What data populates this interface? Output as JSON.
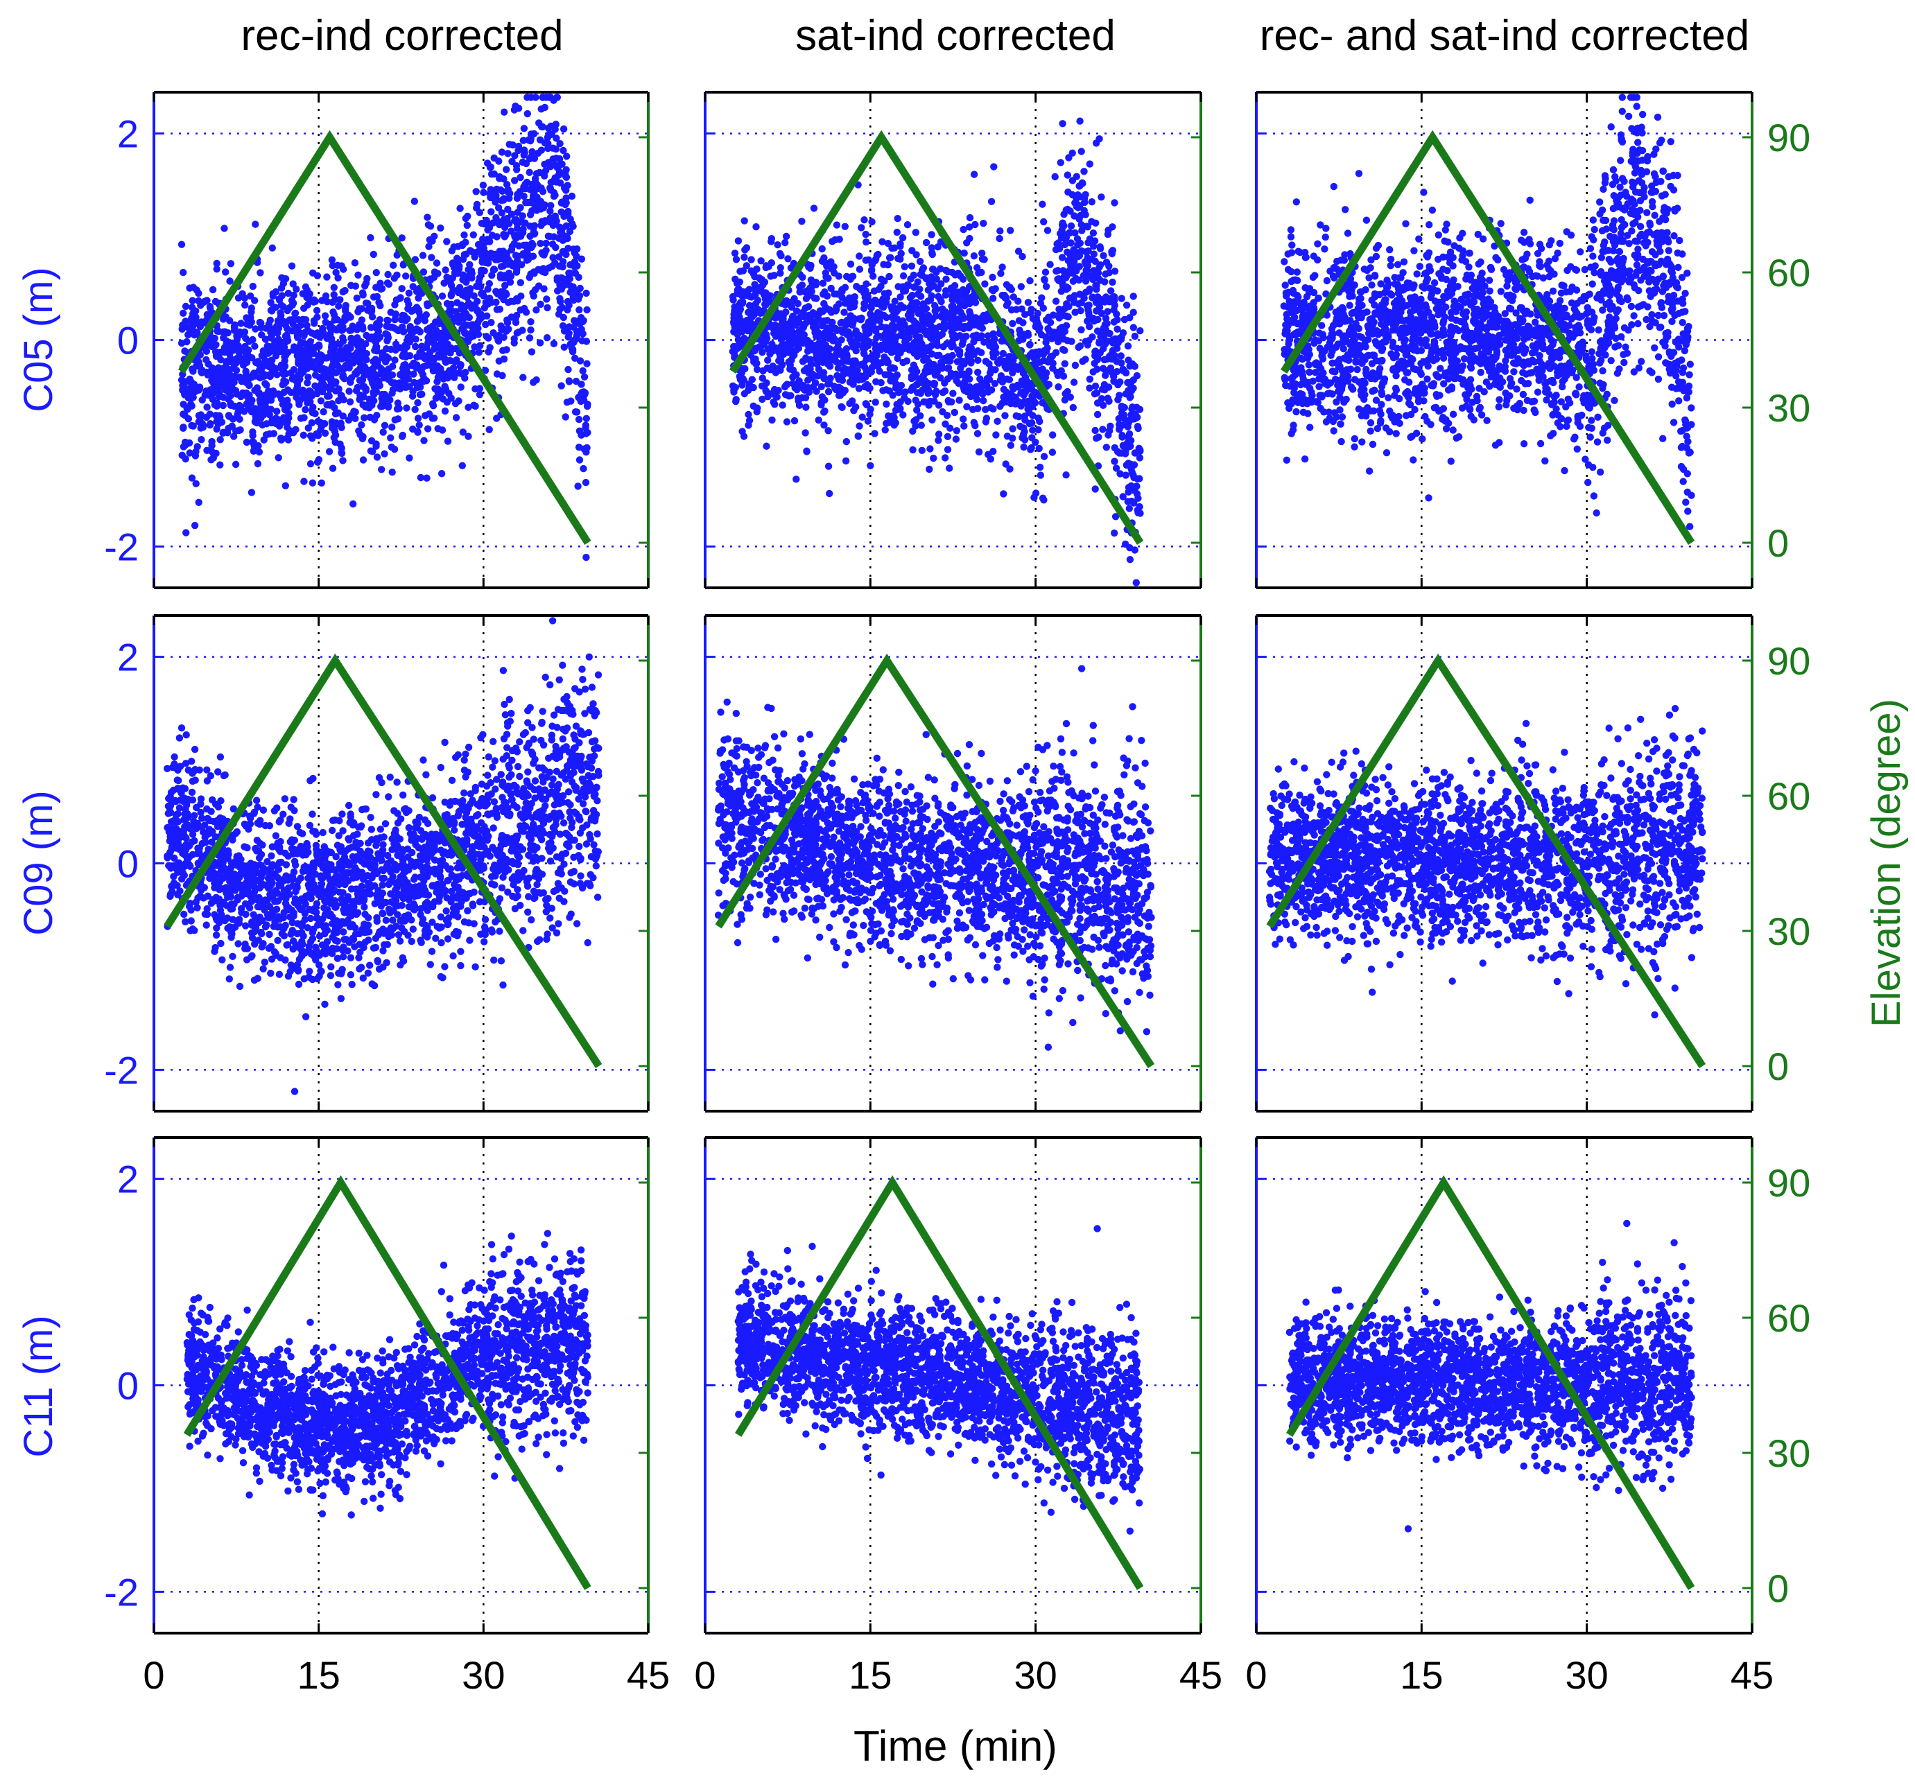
{
  "chart_data": {
    "type": "scatter",
    "figure_note": "3x3 grid: residual (m) scatter on left y-axis, satellite elevation line (degree) on right y-axis",
    "columns": [
      "rec-ind corrected",
      "sat-ind corrected",
      "rec- and sat-ind corrected"
    ],
    "rows": [
      {
        "satellite": "C05",
        "ylabel": "C05 (m)"
      },
      {
        "satellite": "C09",
        "ylabel": "C09 (m)"
      },
      {
        "satellite": "C11",
        "ylabel": "C11 (m)"
      }
    ],
    "xlabel": "Time (min)",
    "xlim": [
      0,
      45
    ],
    "xticks": [
      "0",
      "15",
      "30",
      "45"
    ],
    "ylim": [
      -2.4,
      2.4
    ],
    "yticks": [
      "-2",
      "0",
      "2"
    ],
    "y2label": "Elevation (degree)",
    "y2lim": [
      -10,
      100
    ],
    "y2ticks": [
      "0",
      "30",
      "60",
      "90"
    ],
    "colors": {
      "residual": "#1a1aff",
      "elevation": "#1a7a1a",
      "grid": "#000000"
    },
    "elevation_series": [
      {
        "row": "C05",
        "x": [
          2.5,
          16,
          39.5
        ],
        "y": [
          38,
          90,
          0
        ]
      },
      {
        "row": "C09",
        "x": [
          1.2,
          16.5,
          40.5
        ],
        "y": [
          31,
          90,
          0
        ]
      },
      {
        "row": "C11",
        "x": [
          3,
          17,
          39.5
        ],
        "y": [
          34,
          90,
          0
        ]
      }
    ],
    "residual_series": [
      {
        "row": "C05",
        "col": "rec-ind corrected",
        "x_range": [
          2.5,
          39.5
        ],
        "mean_trend": [
          [
            2.5,
            -0.3
          ],
          [
            16,
            -0.3
          ],
          [
            26,
            0.0
          ],
          [
            32,
            0.8
          ],
          [
            36,
            1.4
          ],
          [
            38,
            0.6
          ],
          [
            39.5,
            -1.0
          ]
        ],
        "spread": 0.45
      },
      {
        "row": "C05",
        "col": "sat-ind corrected",
        "x_range": [
          2.5,
          39.5
        ],
        "mean_trend": [
          [
            2.5,
            0.1
          ],
          [
            16,
            0.0
          ],
          [
            26,
            0.0
          ],
          [
            30,
            -0.5
          ],
          [
            34,
            1.0
          ],
          [
            36,
            0.2
          ],
          [
            39.5,
            -1.2
          ]
        ],
        "spread": 0.45
      },
      {
        "row": "C05",
        "col": "rec- and sat-ind corrected",
        "x_range": [
          2.5,
          39.5
        ],
        "mean_trend": [
          [
            2.5,
            0.0
          ],
          [
            16,
            0.0
          ],
          [
            26,
            0.1
          ],
          [
            30,
            -0.2
          ],
          [
            34,
            1.2
          ],
          [
            37,
            0.8
          ],
          [
            39.5,
            -0.8
          ]
        ],
        "spread": 0.45
      },
      {
        "row": "C09",
        "col": "rec-ind corrected",
        "x_range": [
          1.2,
          40.5
        ],
        "mean_trend": [
          [
            1.2,
            0.3
          ],
          [
            8,
            -0.2
          ],
          [
            16,
            -0.35
          ],
          [
            24,
            -0.1
          ],
          [
            32,
            0.3
          ],
          [
            40.5,
            0.8
          ]
        ],
        "spread": 0.4
      },
      {
        "row": "C09",
        "col": "sat-ind corrected",
        "x_range": [
          1.2,
          40.5
        ],
        "mean_trend": [
          [
            1.2,
            0.5
          ],
          [
            16,
            0.0
          ],
          [
            30,
            -0.1
          ],
          [
            40.5,
            -0.3
          ]
        ],
        "spread": 0.4
      },
      {
        "row": "C09",
        "col": "rec- and sat-ind corrected",
        "x_range": [
          1.2,
          40.5
        ],
        "mean_trend": [
          [
            1.2,
            0.1
          ],
          [
            16,
            0.0
          ],
          [
            30,
            0.0
          ],
          [
            40.5,
            0.2
          ]
        ],
        "spread": 0.38
      },
      {
        "row": "C11",
        "col": "rec-ind corrected",
        "x_range": [
          3,
          39.5
        ],
        "mean_trend": [
          [
            3,
            0.2
          ],
          [
            10,
            -0.2
          ],
          [
            17,
            -0.5
          ],
          [
            22,
            -0.3
          ],
          [
            30,
            0.3
          ],
          [
            39.5,
            0.4
          ]
        ],
        "spread": 0.3
      },
      {
        "row": "C11",
        "col": "sat-ind corrected",
        "x_range": [
          3,
          39.5
        ],
        "mean_trend": [
          [
            3,
            0.4
          ],
          [
            16,
            0.15
          ],
          [
            30,
            -0.1
          ],
          [
            39.5,
            -0.3
          ]
        ],
        "spread": 0.3
      },
      {
        "row": "C11",
        "col": "rec- and sat-ind corrected",
        "x_range": [
          3,
          39.5
        ],
        "mean_trend": [
          [
            3,
            0.05
          ],
          [
            16,
            0.05
          ],
          [
            30,
            0.0
          ],
          [
            39.5,
            0.05
          ]
        ],
        "spread": 0.3
      }
    ]
  }
}
